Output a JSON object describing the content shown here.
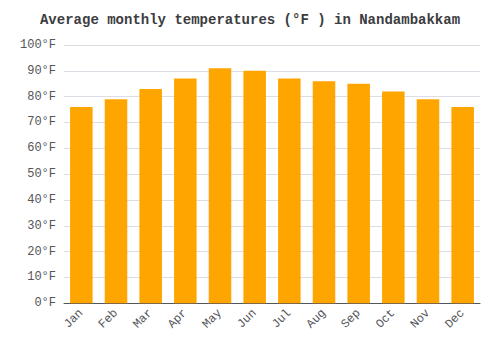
{
  "chart_data": {
    "type": "bar",
    "title": "Average monthly temperatures (°F ) in Nandambakkam",
    "categories": [
      "Jan",
      "Feb",
      "Mar",
      "Apr",
      "May",
      "Jun",
      "Jul",
      "Aug",
      "Sep",
      "Oct",
      "Nov",
      "Dec"
    ],
    "values": [
      76,
      79,
      83,
      87,
      91,
      90,
      87,
      86,
      85,
      82,
      79,
      76
    ],
    "color": "#FFA500",
    "ylim": [
      0,
      100
    ],
    "yticks": [
      {
        "value": 0,
        "label": "0°F"
      },
      {
        "value": 10,
        "label": "10°F"
      },
      {
        "value": 20,
        "label": "20°F"
      },
      {
        "value": 30,
        "label": "30°F"
      },
      {
        "value": 40,
        "label": "40°F"
      },
      {
        "value": 50,
        "label": "50°F"
      },
      {
        "value": 60,
        "label": "60°F"
      },
      {
        "value": 70,
        "label": "70°F"
      },
      {
        "value": 80,
        "label": "80°F"
      },
      {
        "value": 90,
        "label": "90°F"
      },
      {
        "value": 100,
        "label": "100°F"
      }
    ],
    "grid": true
  }
}
